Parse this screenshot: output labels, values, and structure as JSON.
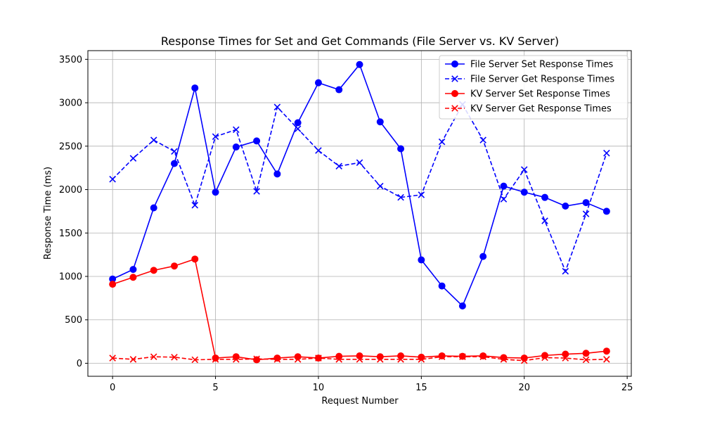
{
  "chart_data": {
    "type": "line",
    "title": "Response Times for Set and Get Commands (File Server vs. KV Server)",
    "xlabel": "Request Number",
    "ylabel": "Response Time (ms)",
    "xlim": [
      -1.2,
      25.2
    ],
    "ylim": [
      -150,
      3600
    ],
    "xticks": [
      0,
      5,
      10,
      15,
      20,
      25
    ],
    "yticks": [
      0,
      500,
      1000,
      1500,
      2000,
      2500,
      3000,
      3500
    ],
    "grid": true,
    "legend_position": "top-right",
    "x": [
      0,
      1,
      2,
      3,
      4,
      5,
      6,
      7,
      8,
      9,
      10,
      11,
      12,
      13,
      14,
      15,
      16,
      17,
      18,
      19,
      20,
      21,
      22,
      23,
      24
    ],
    "series": [
      {
        "name": "File Server Set Response Times",
        "color": "#0000ff",
        "linestyle": "solid",
        "marker": "circle",
        "values": [
          970,
          1080,
          1790,
          2300,
          3170,
          1970,
          2490,
          2560,
          2180,
          2770,
          3230,
          3150,
          3440,
          2780,
          2470,
          1190,
          890,
          660,
          1230,
          2040,
          1970,
          1910,
          1810,
          1850,
          1750
        ]
      },
      {
        "name": "File Server Get Response Times",
        "color": "#0000ff",
        "linestyle": "dashed",
        "marker": "x",
        "values": [
          2120,
          2360,
          2570,
          2440,
          1820,
          2610,
          2690,
          1980,
          2950,
          2700,
          2450,
          2270,
          2310,
          2040,
          1910,
          1940,
          2550,
          2980,
          2570,
          1890,
          2230,
          1640,
          1060,
          1720,
          2420
        ]
      },
      {
        "name": "KV Server Set Response Times",
        "color": "#ff0000",
        "linestyle": "solid",
        "marker": "circle",
        "values": [
          910,
          990,
          1070,
          1120,
          1200,
          60,
          75,
          40,
          60,
          75,
          60,
          80,
          85,
          75,
          85,
          70,
          85,
          80,
          85,
          65,
          60,
          90,
          105,
          115,
          140
        ]
      },
      {
        "name": "KV Server Get Response Times",
        "color": "#ff0000",
        "linestyle": "dashed",
        "marker": "x",
        "values": [
          60,
          45,
          75,
          70,
          40,
          45,
          45,
          50,
          45,
          45,
          60,
          45,
          45,
          45,
          45,
          45,
          75,
          75,
          75,
          45,
          30,
          65,
          60,
          40,
          45
        ]
      }
    ]
  }
}
